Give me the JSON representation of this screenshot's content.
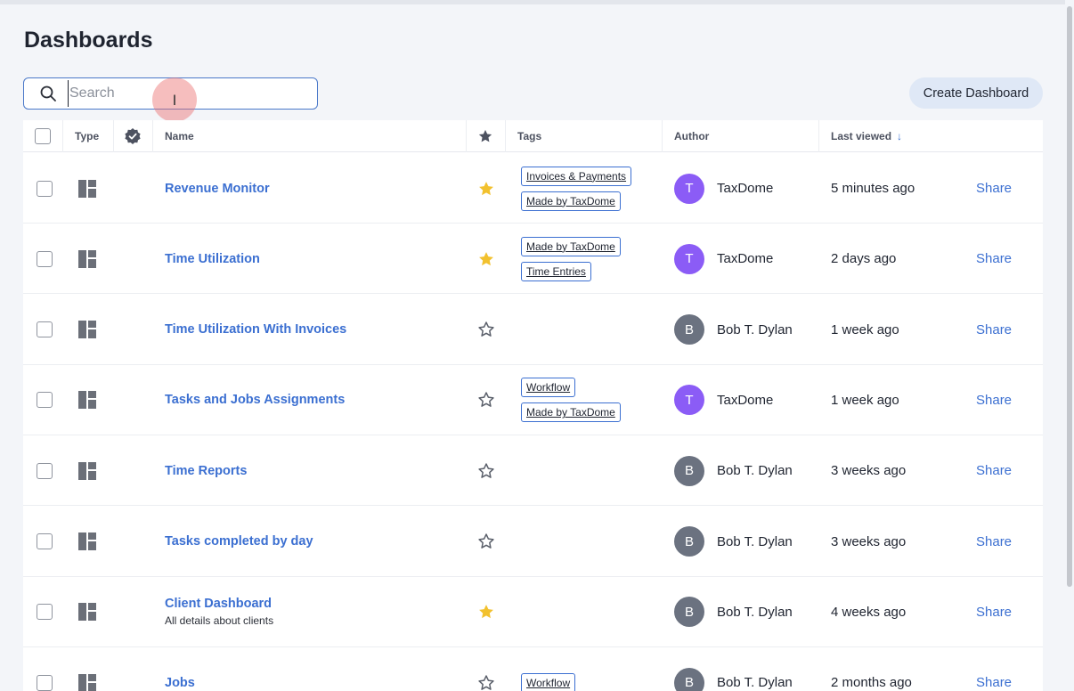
{
  "page": {
    "title": "Dashboards"
  },
  "search": {
    "placeholder": "Search",
    "value": ""
  },
  "toolbar": {
    "create_label": "Create Dashboard"
  },
  "columns": {
    "type": "Type",
    "name": "Name",
    "tags": "Tags",
    "author": "Author",
    "last_viewed": "Last viewed",
    "sort_indicator": "↓"
  },
  "colors": {
    "accent": "#3b6fd1",
    "star_filled": "#f2c12e",
    "avatar_taxdome": "#8b5cf6",
    "avatar_bob": "#6b7280"
  },
  "rows": [
    {
      "name": "Revenue Monitor",
      "description": "",
      "starred": true,
      "tags": [
        "Invoices & Payments",
        "Made by TaxDome"
      ],
      "author": "TaxDome",
      "avatar": "T",
      "avatar_color": "#8b5cf6",
      "last_viewed": "5 minutes ago",
      "share": "Share"
    },
    {
      "name": "Time Utilization",
      "description": "",
      "starred": true,
      "tags": [
        "Made by TaxDome",
        "Time Entries"
      ],
      "author": "TaxDome",
      "avatar": "T",
      "avatar_color": "#8b5cf6",
      "last_viewed": "2 days ago",
      "share": "Share"
    },
    {
      "name": "Time Utilization With Invoices",
      "description": "",
      "starred": false,
      "tags": [],
      "author": "Bob T. Dylan",
      "avatar": "B",
      "avatar_color": "#6b7280",
      "last_viewed": "1 week ago",
      "share": "Share"
    },
    {
      "name": "Tasks and Jobs Assignments",
      "description": "",
      "starred": false,
      "tags": [
        "Workflow",
        "Made by TaxDome"
      ],
      "author": "TaxDome",
      "avatar": "T",
      "avatar_color": "#8b5cf6",
      "last_viewed": "1 week ago",
      "share": "Share"
    },
    {
      "name": "Time Reports",
      "description": "",
      "starred": false,
      "tags": [],
      "author": "Bob T. Dylan",
      "avatar": "B",
      "avatar_color": "#6b7280",
      "last_viewed": "3 weeks ago",
      "share": "Share"
    },
    {
      "name": "Tasks completed by day",
      "description": "",
      "starred": false,
      "tags": [],
      "author": "Bob T. Dylan",
      "avatar": "B",
      "avatar_color": "#6b7280",
      "last_viewed": "3 weeks ago",
      "share": "Share"
    },
    {
      "name": "Client Dashboard",
      "description": "All details about clients",
      "starred": true,
      "tags": [],
      "author": "Bob T. Dylan",
      "avatar": "B",
      "avatar_color": "#6b7280",
      "last_viewed": "4 weeks ago",
      "share": "Share"
    },
    {
      "name": "Jobs",
      "description": "",
      "starred": false,
      "tags": [
        "Workflow"
      ],
      "author": "Bob T. Dylan",
      "avatar": "B",
      "avatar_color": "#6b7280",
      "last_viewed": "2 months ago",
      "share": "Share"
    }
  ]
}
